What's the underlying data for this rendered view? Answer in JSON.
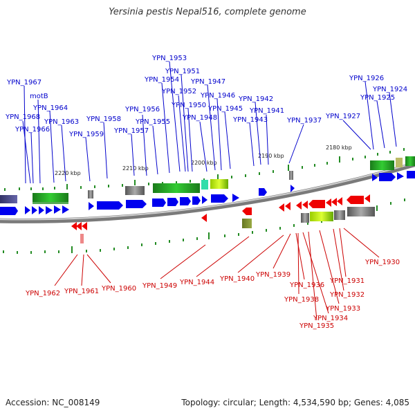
{
  "title": "Yersinia pestis Nepal516, complete genome",
  "footer": {
    "accession": "Accession: NC_008149",
    "summary": "Topology: circular; Length: 4,534,590 bp; Genes: 4,085"
  },
  "colors": {
    "forward_strand": "#0000ee",
    "reverse_strand": "#ee0000",
    "label_forward": "#0000cc",
    "label_reverse": "#cc0000",
    "backbone": "#808080",
    "tick": "#228b22"
  },
  "scale_labels": [
    "2220 kbp",
    "2210 kbp",
    "2200 kbp",
    "2190 kbp",
    "2180 kbp"
  ],
  "forward_genes": [
    "YPN_1967",
    "motB",
    "YPN_1968",
    "YPN_1964",
    "YPN_1966",
    "YPN_1963",
    "YPN_1959",
    "YPN_1958",
    "YPN_1957",
    "YPN_1956",
    "YPN_1955",
    "YPN_1954",
    "YPN_1953",
    "YPN_1951",
    "YPN_1952",
    "YPN_1950",
    "YPN_1948",
    "YPN_1947",
    "YPN_1946",
    "YPN_1945",
    "YPN_1943",
    "YPN_1942",
    "YPN_1941",
    "YPN_1937",
    "YPN_1927",
    "YPN_1926",
    "YPN_1925",
    "YPN_1924"
  ],
  "reverse_genes": [
    "YPN_1962",
    "YPN_1961",
    "YPN_1960",
    "YPN_1949",
    "YPN_1944",
    "YPN_1940",
    "YPN_1939",
    "YPN_1936",
    "YPN_1938",
    "YPN_1935",
    "YPN_1934",
    "YPN_1933",
    "YPN_1932",
    "YPN_1931",
    "YPN_1930"
  ]
}
